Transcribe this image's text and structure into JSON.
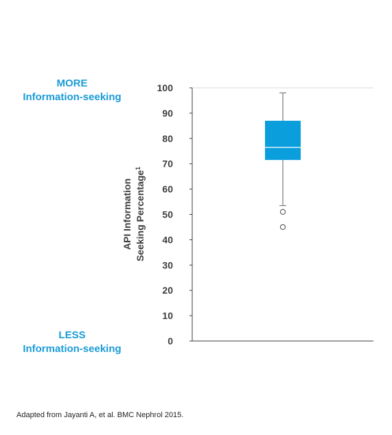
{
  "labels": {
    "more_line1": "MORE",
    "more_line2": "Information-seeking",
    "less_line1": "LESS",
    "less_line2": "Information-seeking"
  },
  "colors": {
    "accent": "#1a9bd7",
    "box_fill": "#0a9edd",
    "axis": "#3c3c3c",
    "whisker": "#7a7a7a"
  },
  "footnote": "Adapted from Jayanti A, et al. BMC Nephrol 2015.",
  "chart_data": {
    "type": "boxplot",
    "ylabel_line1": "API Information",
    "ylabel_line2": "Seeking Percentage",
    "ylabel_superscript": "1",
    "ylim": [
      0,
      100
    ],
    "yticks": [
      0,
      10,
      20,
      30,
      40,
      50,
      60,
      70,
      80,
      90,
      100
    ],
    "grid": false,
    "box": {
      "whisker_low": 53.5,
      "q1": 71.5,
      "median": 76.5,
      "q3": 87,
      "whisker_high": 98
    },
    "outliers": [
      51,
      45
    ]
  }
}
